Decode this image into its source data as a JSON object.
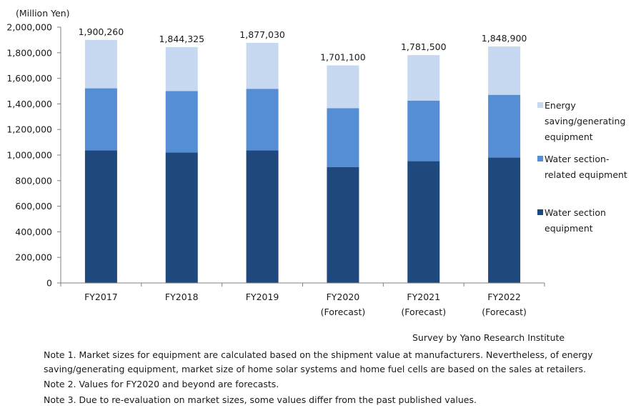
{
  "chart_data": {
    "type": "bar",
    "stacked": true,
    "unit_label": "(Million Yen)",
    "categories": [
      [
        "FY2017"
      ],
      [
        "FY2018"
      ],
      [
        "FY2019"
      ],
      [
        "FY2020",
        "(Forecast)"
      ],
      [
        "FY2021",
        "(Forecast)"
      ],
      [
        "FY2022",
        "(Forecast)"
      ]
    ],
    "series": [
      {
        "name": "Water section equipment",
        "color": "#1f497d",
        "values": [
          1036000,
          1020000,
          1036000,
          905000,
          952000,
          980000
        ]
      },
      {
        "name": "Water section-related equipment",
        "color": "#558ed5",
        "values": [
          486000,
          480000,
          482000,
          461000,
          474000,
          491000
        ]
      },
      {
        "name": "Energy saving/generating equipment",
        "color": "#c6d9f1",
        "values": [
          378260,
          344325,
          359030,
          335100,
          355500,
          377900
        ]
      }
    ],
    "totals": [
      "1,900,260",
      "1,844,325",
      "1,877,030",
      "1,701,100",
      "1,781,500",
      "1,848,900"
    ],
    "ylim": [
      0,
      2000000
    ],
    "yticks": [
      "0",
      "200,000",
      "400,000",
      "600,000",
      "800,000",
      "1,000,000",
      "1,200,000",
      "1,400,000",
      "1,600,000",
      "1,800,000",
      "2,000,000"
    ],
    "legend": {
      "position": "right",
      "items": [
        {
          "lines": [
            "Energy",
            "saving/generating",
            "equipment"
          ],
          "color": "#c6d9f1"
        },
        {
          "lines": [
            "Water section-",
            "related equipment"
          ],
          "color": "#558ed5"
        },
        {
          "lines": [
            "Water section",
            "equipment"
          ],
          "color": "#1f497d"
        }
      ]
    },
    "grid": false
  },
  "source": "Survey by Yano Research Institute",
  "notes": [
    "Note 1. Market sizes for equipment are calculated based on the shipment value at manufacturers. Nevertheless, of energy saving/generating equipment, market size of home solar systems and home fuel cells are based on the sales at retailers.",
    "Note 2. Values for FY2020 and beyond are forecasts.",
    "Note 3. Due to re-evaluation on market sizes, some values differ from the past published values."
  ]
}
